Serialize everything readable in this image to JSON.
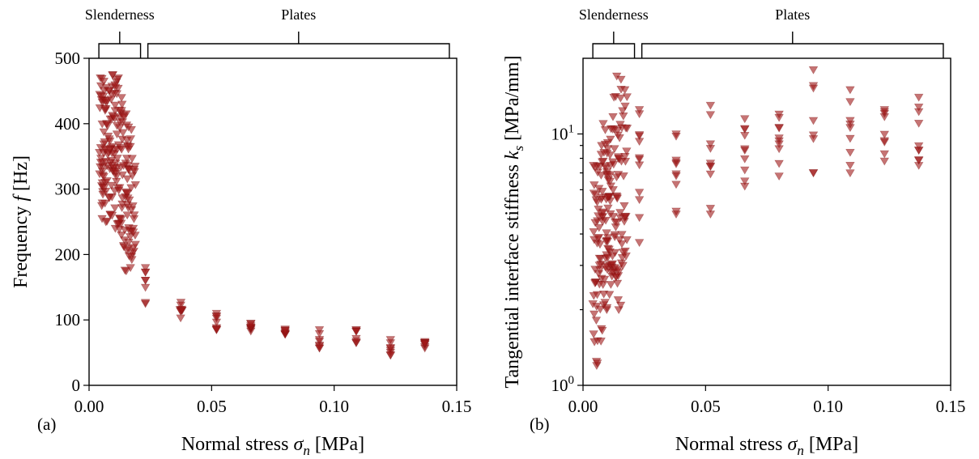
{
  "chart_data": [
    {
      "type": "scatter",
      "panel_label": "(a)",
      "xlabel": "Normal stress σ_n [MPa]",
      "xlabel_parts": {
        "pre": "Normal stress ",
        "sym": "σ",
        "sub": "n",
        "post": " [MPa]"
      },
      "ylabel": "Frequency f [Hz]",
      "ylabel_parts": {
        "pre": "Frequency ",
        "sym": "f",
        "sub": "",
        "post": " [Hz]"
      },
      "xlim": [
        0.0,
        0.15
      ],
      "ylim": [
        0,
        500
      ],
      "yscale": "linear",
      "xticks": [
        0.0,
        0.05,
        0.1,
        0.15
      ],
      "xtick_labels": [
        "0.00",
        "0.05",
        "0.10",
        "0.15"
      ],
      "yticks": [
        0,
        100,
        200,
        300,
        400,
        500
      ],
      "ytick_labels": [
        "0",
        "100",
        "200",
        "300",
        "400",
        "500"
      ],
      "marker": "triangle-down",
      "color": "#a01818",
      "regions": [
        {
          "label": "Slenderness",
          "x_range": [
            0.004,
            0.021
          ]
        },
        {
          "label": "Plates",
          "x_range": [
            0.024,
            0.147
          ]
        }
      ],
      "clusters": [
        {
          "x": [
            0.004,
            0.006
          ],
          "y": [
            255,
            470
          ],
          "count": 30
        },
        {
          "x": [
            0.006,
            0.008
          ],
          "y": [
            250,
            465
          ],
          "count": 30
        },
        {
          "x": [
            0.008,
            0.01
          ],
          "y": [
            260,
            475
          ],
          "count": 30
        },
        {
          "x": [
            0.01,
            0.012
          ],
          "y": [
            240,
            470
          ],
          "count": 30
        },
        {
          "x": [
            0.012,
            0.014
          ],
          "y": [
            230,
            440
          ],
          "count": 28
        },
        {
          "x": [
            0.014,
            0.016
          ],
          "y": [
            175,
            415
          ],
          "count": 28
        },
        {
          "x": [
            0.016,
            0.018
          ],
          "y": [
            180,
            395
          ],
          "count": 24
        },
        {
          "x": [
            0.018,
            0.019
          ],
          "y": [
            205,
            335
          ],
          "count": 12
        },
        {
          "x": [
            0.023,
            0.023
          ],
          "y": [
            125,
            180
          ],
          "count": 8
        },
        {
          "x": [
            0.037,
            0.038
          ],
          "y": [
            103,
            127
          ],
          "count": 9
        },
        {
          "x": [
            0.052,
            0.052
          ],
          "y": [
            85,
            110
          ],
          "count": 9
        },
        {
          "x": [
            0.066,
            0.066
          ],
          "y": [
            83,
            95
          ],
          "count": 9
        },
        {
          "x": [
            0.08,
            0.08
          ],
          "y": [
            78,
            86
          ],
          "count": 8
        },
        {
          "x": [
            0.094,
            0.094
          ],
          "y": [
            57,
            85
          ],
          "count": 8
        },
        {
          "x": [
            0.109,
            0.109
          ],
          "y": [
            65,
            85
          ],
          "count": 8
        },
        {
          "x": [
            0.123,
            0.123
          ],
          "y": [
            46,
            70
          ],
          "count": 8
        },
        {
          "x": [
            0.137,
            0.137
          ],
          "y": [
            57,
            67
          ],
          "count": 8
        }
      ]
    },
    {
      "type": "scatter",
      "panel_label": "(b)",
      "xlabel": "Normal stress σ_n [MPa]",
      "xlabel_parts": {
        "pre": "Normal stress ",
        "sym": "σ",
        "sub": "n",
        "post": " [MPa]"
      },
      "ylabel": "Tangential interface stiffness k_s [MPa/mm]",
      "ylabel_parts": {
        "pre": "Tangential interface stiffness ",
        "sym": "k",
        "sub": "s",
        "post": " [MPa/mm]"
      },
      "xlim": [
        0.0,
        0.15
      ],
      "ylim": [
        1,
        20
      ],
      "yscale": "log",
      "xticks": [
        0.0,
        0.05,
        0.1,
        0.15
      ],
      "xtick_labels": [
        "0.00",
        "0.05",
        "0.10",
        "0.15"
      ],
      "yticks": [
        1,
        10
      ],
      "ytick_labels": [
        {
          "base": "10",
          "exp": "0"
        },
        {
          "base": "10",
          "exp": "1"
        }
      ],
      "marker": "triangle-down",
      "color": "#a01818",
      "regions": [
        {
          "label": "Slenderness",
          "x_range": [
            0.004,
            0.021
          ]
        },
        {
          "label": "Plates",
          "x_range": [
            0.024,
            0.147
          ]
        }
      ],
      "clusters": [
        {
          "x": [
            0.004,
            0.006
          ],
          "y": [
            1.2,
            7.5
          ],
          "count": 30
        },
        {
          "x": [
            0.006,
            0.008
          ],
          "y": [
            1.5,
            9.0
          ],
          "count": 30
        },
        {
          "x": [
            0.008,
            0.01
          ],
          "y": [
            2.0,
            11.0
          ],
          "count": 30
        },
        {
          "x": [
            0.01,
            0.012
          ],
          "y": [
            2.3,
            10.5
          ],
          "count": 30
        },
        {
          "x": [
            0.012,
            0.014
          ],
          "y": [
            2.7,
            17.0
          ],
          "count": 28
        },
        {
          "x": [
            0.014,
            0.016
          ],
          "y": [
            2.0,
            16.5
          ],
          "count": 26
        },
        {
          "x": [
            0.016,
            0.018
          ],
          "y": [
            3.0,
            15.0
          ],
          "count": 22
        },
        {
          "x": [
            0.023,
            0.023
          ],
          "y": [
            3.7,
            12.5
          ],
          "count": 12
        },
        {
          "x": [
            0.038,
            0.038
          ],
          "y": [
            4.8,
            10.0
          ],
          "count": 10
        },
        {
          "x": [
            0.052,
            0.052
          ],
          "y": [
            4.8,
            13.0
          ],
          "count": 10
        },
        {
          "x": [
            0.066,
            0.066
          ],
          "y": [
            6.2,
            11.5
          ],
          "count": 10
        },
        {
          "x": [
            0.08,
            0.08
          ],
          "y": [
            6.8,
            12.0
          ],
          "count": 10
        },
        {
          "x": [
            0.094,
            0.094
          ],
          "y": [
            7.0,
            18.0
          ],
          "count": 8
        },
        {
          "x": [
            0.109,
            0.109
          ],
          "y": [
            7.0,
            15.0
          ],
          "count": 9
        },
        {
          "x": [
            0.123,
            0.123
          ],
          "y": [
            7.8,
            12.5
          ],
          "count": 9
        },
        {
          "x": [
            0.137,
            0.137
          ],
          "y": [
            7.5,
            14.0
          ],
          "count": 10
        }
      ]
    }
  ]
}
